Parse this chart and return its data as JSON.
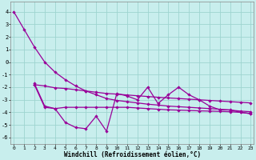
{
  "xlabel": "Windchill (Refroidissement éolien,°C)",
  "bg_color": "#c8eeed",
  "grid_color": "#9dd4d0",
  "line_color": "#990099",
  "xlim": [
    -0.3,
    23.3
  ],
  "ylim": [
    -6.5,
    4.8
  ],
  "yticks": [
    -6,
    -5,
    -4,
    -3,
    -2,
    -1,
    0,
    1,
    2,
    3,
    4
  ],
  "xticks": [
    0,
    1,
    2,
    3,
    4,
    5,
    6,
    7,
    8,
    9,
    10,
    11,
    12,
    13,
    14,
    15,
    16,
    17,
    18,
    19,
    20,
    21,
    22,
    23
  ],
  "line1_x": [
    0,
    1,
    2,
    3,
    4,
    5,
    6,
    7,
    8,
    9,
    10,
    11,
    12,
    13,
    14,
    15,
    16,
    17,
    18,
    19,
    20,
    21,
    22,
    23
  ],
  "line1_y": [
    4.0,
    2.6,
    1.2,
    0.0,
    -0.8,
    -1.4,
    -1.9,
    -2.3,
    -2.6,
    -2.9,
    -3.05,
    -3.15,
    -3.25,
    -3.35,
    -3.42,
    -3.5,
    -3.55,
    -3.6,
    -3.65,
    -3.7,
    -3.75,
    -3.82,
    -3.9,
    -3.95
  ],
  "line2_x": [
    2,
    3,
    4,
    5,
    6,
    7,
    8,
    9,
    10,
    11,
    12,
    13,
    14,
    15,
    16,
    17,
    18,
    19,
    20,
    21,
    22,
    23
  ],
  "line2_y": [
    -1.7,
    -3.5,
    -3.7,
    -4.8,
    -5.2,
    -5.3,
    -4.3,
    -5.5,
    -2.5,
    -2.7,
    -3.0,
    -2.0,
    -3.3,
    -2.6,
    -2.0,
    -2.6,
    -3.0,
    -3.5,
    -3.8,
    -3.8,
    -4.0,
    -4.1
  ],
  "line3_x": [
    2,
    3,
    4,
    5,
    6,
    7,
    8,
    9,
    10,
    11,
    12,
    13,
    14,
    15,
    16,
    17,
    18,
    19,
    20,
    21,
    22,
    23
  ],
  "line3_y": [
    -1.8,
    -3.6,
    -3.7,
    -3.6,
    -3.6,
    -3.6,
    -3.6,
    -3.6,
    -3.6,
    -3.6,
    -3.65,
    -3.7,
    -3.75,
    -3.8,
    -3.82,
    -3.85,
    -3.88,
    -3.9,
    -3.92,
    -3.95,
    -4.0,
    -4.1
  ],
  "line4_x": [
    2,
    3,
    4,
    5,
    6,
    7,
    8,
    9,
    10,
    11,
    12,
    13,
    14,
    15,
    16,
    17,
    18,
    19,
    20,
    21,
    22,
    23
  ],
  "line4_y": [
    -1.8,
    -1.9,
    -2.05,
    -2.1,
    -2.2,
    -2.3,
    -2.4,
    -2.5,
    -2.55,
    -2.62,
    -2.68,
    -2.74,
    -2.8,
    -2.85,
    -2.9,
    -2.95,
    -3.0,
    -3.05,
    -3.1,
    -3.15,
    -3.2,
    -3.25
  ]
}
